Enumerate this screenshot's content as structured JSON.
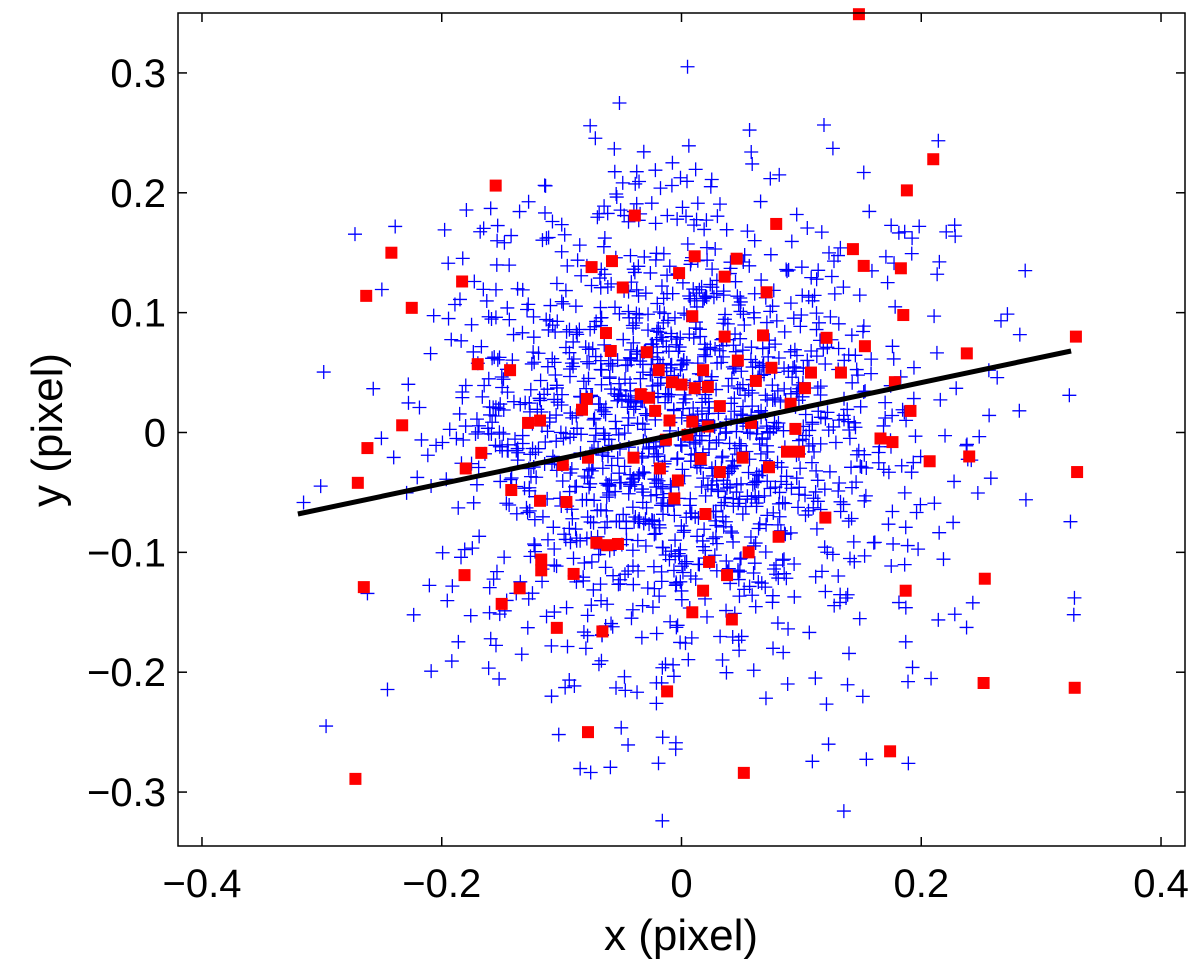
{
  "chart_data": {
    "type": "scatter",
    "title": "",
    "xlabel": "x (pixel)",
    "ylabel": "y (pixel)",
    "xlim": [
      -0.42,
      0.42
    ],
    "ylim": [
      -0.345,
      0.35
    ],
    "xticks": [
      -0.4,
      -0.2,
      0,
      0.2,
      0.4
    ],
    "yticks": [
      -0.3,
      -0.2,
      -0.1,
      0,
      0.1,
      0.2,
      0.3
    ],
    "xtick_labels": [
      "−0.4",
      "−0.2",
      "0",
      "0.2",
      "0.4"
    ],
    "ytick_labels": [
      "−0.3",
      "−0.2",
      "−0.1",
      "0",
      "0.1",
      "0.2",
      "0.3"
    ],
    "grid": false,
    "legend": "none",
    "series": [
      {
        "marker": "plus",
        "color": "#0000ff",
        "distribution": {
          "n": 1500,
          "mean": [
            0,
            0
          ],
          "std": [
            0.105,
            0.1
          ],
          "seed": 7
        }
      },
      {
        "marker": "square",
        "color": "#ff0000",
        "points": [
          [
            0.148,
            0.349
          ],
          [
            0.21,
            0.228
          ],
          [
            0.188,
            0.202
          ],
          [
            -0.155,
            0.206
          ],
          [
            -0.039,
            0.181
          ],
          [
            0.079,
            0.174
          ],
          [
            0.143,
            0.153
          ],
          [
            0.152,
            0.139
          ],
          [
            0.183,
            0.137
          ],
          [
            -0.242,
            0.15
          ],
          [
            -0.183,
            0.126
          ],
          [
            -0.075,
            0.138
          ],
          [
            -0.058,
            0.143
          ],
          [
            0.011,
            0.147
          ],
          [
            0.046,
            0.145
          ],
          [
            0.036,
            0.13
          ],
          [
            -0.002,
            0.133
          ],
          [
            -0.263,
            0.114
          ],
          [
            -0.225,
            0.104
          ],
          [
            0.185,
            0.098
          ],
          [
            0.071,
            0.117
          ],
          [
            -0.049,
            0.121
          ],
          [
            0.009,
            0.097
          ],
          [
            0.068,
            0.081
          ],
          [
            0.036,
            0.08
          ],
          [
            0.121,
            0.079
          ],
          [
            0.329,
            0.08
          ],
          [
            0.153,
            0.072
          ],
          [
            0.238,
            0.066
          ],
          [
            -0.063,
            0.083
          ],
          [
            -0.059,
            0.068
          ],
          [
            -0.029,
            0.067
          ],
          [
            -0.17,
            0.057
          ],
          [
            0.075,
            0.054
          ],
          [
            0.108,
            0.05
          ],
          [
            -0.143,
            0.052
          ],
          [
            0.047,
            0.06
          ],
          [
            0.018,
            0.052
          ],
          [
            0.133,
            0.05
          ],
          [
            -0.019,
            0.052
          ],
          [
            -0.027,
            0.029
          ],
          [
            -0.008,
            0.042
          ],
          [
            0.011,
            0.037
          ],
          [
            0.062,
            0.043
          ],
          [
            0.178,
            0.042
          ],
          [
            0.103,
            0.037
          ],
          [
            0.022,
            0.038
          ],
          [
            -0.079,
            0.028
          ],
          [
            -0.083,
            0.019
          ],
          [
            0.032,
            0.022
          ],
          [
            -0.022,
            0.018
          ],
          [
            0.009,
            0.009
          ],
          [
            0.0,
            0.04
          ],
          [
            -0.034,
            0.032
          ],
          [
            0.091,
            0.024
          ],
          [
            0.191,
            0.018
          ],
          [
            -0.233,
            0.006
          ],
          [
            -0.128,
            0.008
          ],
          [
            -0.118,
            0.01
          ],
          [
            0.095,
            0.003
          ],
          [
            0.058,
            0.008
          ],
          [
            -0.01,
            0.01
          ],
          [
            0.022,
            0.005
          ],
          [
            -0.013,
            -0.006
          ],
          [
            0.005,
            -0.002
          ],
          [
            0.166,
            -0.005
          ],
          [
            0.176,
            -0.008
          ],
          [
            0.088,
            -0.016
          ],
          [
            0.098,
            -0.016
          ],
          [
            0.051,
            -0.021
          ],
          [
            -0.078,
            -0.021
          ],
          [
            -0.262,
            -0.013
          ],
          [
            -0.167,
            -0.017
          ],
          [
            -0.04,
            -0.021
          ],
          [
            -0.018,
            -0.03
          ],
          [
            0.016,
            -0.022
          ],
          [
            -0.099,
            -0.027
          ],
          [
            0.032,
            -0.033
          ],
          [
            0.073,
            -0.029
          ],
          [
            0.207,
            -0.024
          ],
          [
            0.24,
            -0.02
          ],
          [
            0.33,
            -0.033
          ],
          [
            -0.003,
            -0.04
          ],
          [
            -0.18,
            -0.03
          ],
          [
            -0.27,
            -0.042
          ],
          [
            -0.142,
            -0.048
          ],
          [
            -0.006,
            -0.055
          ],
          [
            -0.118,
            -0.057
          ],
          [
            0.12,
            -0.071
          ],
          [
            0.02,
            -0.068
          ],
          [
            -0.096,
            -0.058
          ],
          [
            -0.071,
            -0.092
          ],
          [
            -0.062,
            -0.094
          ],
          [
            -0.053,
            -0.093
          ],
          [
            0.056,
            -0.1
          ],
          [
            0.081,
            -0.087
          ],
          [
            -0.117,
            -0.106
          ],
          [
            -0.117,
            -0.115
          ],
          [
            0.023,
            -0.108
          ],
          [
            -0.09,
            -0.118
          ],
          [
            -0.181,
            -0.119
          ],
          [
            -0.265,
            -0.129
          ],
          [
            -0.135,
            -0.13
          ],
          [
            0.038,
            -0.119
          ],
          [
            0.018,
            -0.132
          ],
          [
            0.187,
            -0.132
          ],
          [
            0.253,
            -0.122
          ],
          [
            -0.15,
            -0.143
          ],
          [
            0.009,
            -0.15
          ],
          [
            0.042,
            -0.156
          ],
          [
            -0.066,
            -0.166
          ],
          [
            -0.104,
            -0.163
          ],
          [
            -0.012,
            -0.216
          ],
          [
            0.252,
            -0.209
          ],
          [
            0.328,
            -0.213
          ],
          [
            -0.078,
            -0.25
          ],
          [
            0.174,
            -0.266
          ],
          [
            0.052,
            -0.284
          ],
          [
            -0.272,
            -0.289
          ]
        ]
      }
    ],
    "fit_line": {
      "color": "#000000",
      "x": [
        -0.32,
        0.325
      ],
      "y": [
        -0.068,
        0.068
      ]
    }
  }
}
